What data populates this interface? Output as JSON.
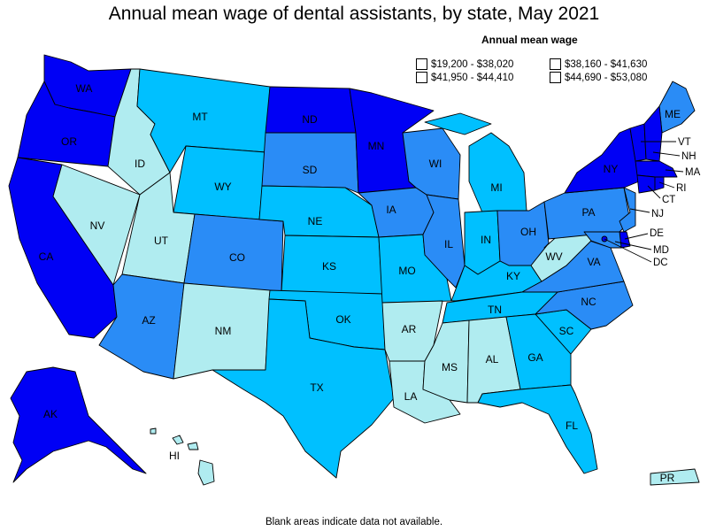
{
  "title": "Annual mean wage of dental assistants, by state, May 2021",
  "legend": {
    "title": "Annual mean wage",
    "items": [
      {
        "label": "$19,200 - $38,020",
        "color": "#b0ecf0"
      },
      {
        "label": "$38,160 - $41,630",
        "color": "#00c0ff"
      },
      {
        "label": "$41,950 - $44,410",
        "color": "#2a8cf6"
      },
      {
        "label": "$44,690 - $53,080",
        "color": "#0000f5"
      }
    ]
  },
  "footnote": "Blank areas indicate data not available.",
  "states": {
    "WA": {
      "label": "WA",
      "tier": 4
    },
    "OR": {
      "label": "OR",
      "tier": 4
    },
    "CA": {
      "label": "CA",
      "tier": 4
    },
    "ID": {
      "label": "ID",
      "tier": 1
    },
    "NV": {
      "label": "NV",
      "tier": 1
    },
    "MT": {
      "label": "MT",
      "tier": 2
    },
    "WY": {
      "label": "WY",
      "tier": 2
    },
    "UT": {
      "label": "UT",
      "tier": 1
    },
    "AZ": {
      "label": "AZ",
      "tier": 3
    },
    "CO": {
      "label": "CO",
      "tier": 3
    },
    "NM": {
      "label": "NM",
      "tier": 1
    },
    "ND": {
      "label": "ND",
      "tier": 4
    },
    "SD": {
      "label": "SD",
      "tier": 3
    },
    "NE": {
      "label": "NE",
      "tier": 2
    },
    "KS": {
      "label": "KS",
      "tier": 2
    },
    "OK": {
      "label": "OK",
      "tier": 2
    },
    "TX": {
      "label": "TX",
      "tier": 2
    },
    "MN": {
      "label": "MN",
      "tier": 4
    },
    "IA": {
      "label": "IA",
      "tier": 3
    },
    "MO": {
      "label": "MO",
      "tier": 2
    },
    "AR": {
      "label": "AR",
      "tier": 1
    },
    "LA": {
      "label": "LA",
      "tier": 1
    },
    "WI": {
      "label": "WI",
      "tier": 3
    },
    "IL": {
      "label": "IL",
      "tier": 3
    },
    "MI": {
      "label": "MI",
      "tier": 2
    },
    "IN": {
      "label": "IN",
      "tier": 2
    },
    "OH": {
      "label": "OH",
      "tier": 3
    },
    "KY": {
      "label": "KY",
      "tier": 2
    },
    "TN": {
      "label": "TN",
      "tier": 2
    },
    "MS": {
      "label": "MS",
      "tier": 1
    },
    "AL": {
      "label": "AL",
      "tier": 1
    },
    "GA": {
      "label": "GA",
      "tier": 2
    },
    "FL": {
      "label": "FL",
      "tier": 2
    },
    "SC": {
      "label": "SC",
      "tier": 2
    },
    "NC": {
      "label": "NC",
      "tier": 3
    },
    "VA": {
      "label": "VA",
      "tier": 3
    },
    "WV": {
      "label": "WV",
      "tier": 1
    },
    "PA": {
      "label": "PA",
      "tier": 3
    },
    "NY": {
      "label": "NY",
      "tier": 4
    },
    "ME": {
      "label": "ME",
      "tier": 3
    },
    "VT": {
      "label": "VT",
      "tier": 4
    },
    "NH": {
      "label": "NH",
      "tier": 4
    },
    "MA": {
      "label": "MA",
      "tier": 4
    },
    "RI": {
      "label": "RI",
      "tier": 4
    },
    "CT": {
      "label": "CT",
      "tier": 4
    },
    "NJ": {
      "label": "NJ",
      "tier": 3
    },
    "DE": {
      "label": "DE",
      "tier": 4
    },
    "MD": {
      "label": "MD",
      "tier": 3
    },
    "DC": {
      "label": "DC",
      "tier": 4
    },
    "AK": {
      "label": "AK",
      "tier": 4
    },
    "HI": {
      "label": "HI",
      "tier": 1
    },
    "PR": {
      "label": "PR",
      "tier": 1
    }
  }
}
